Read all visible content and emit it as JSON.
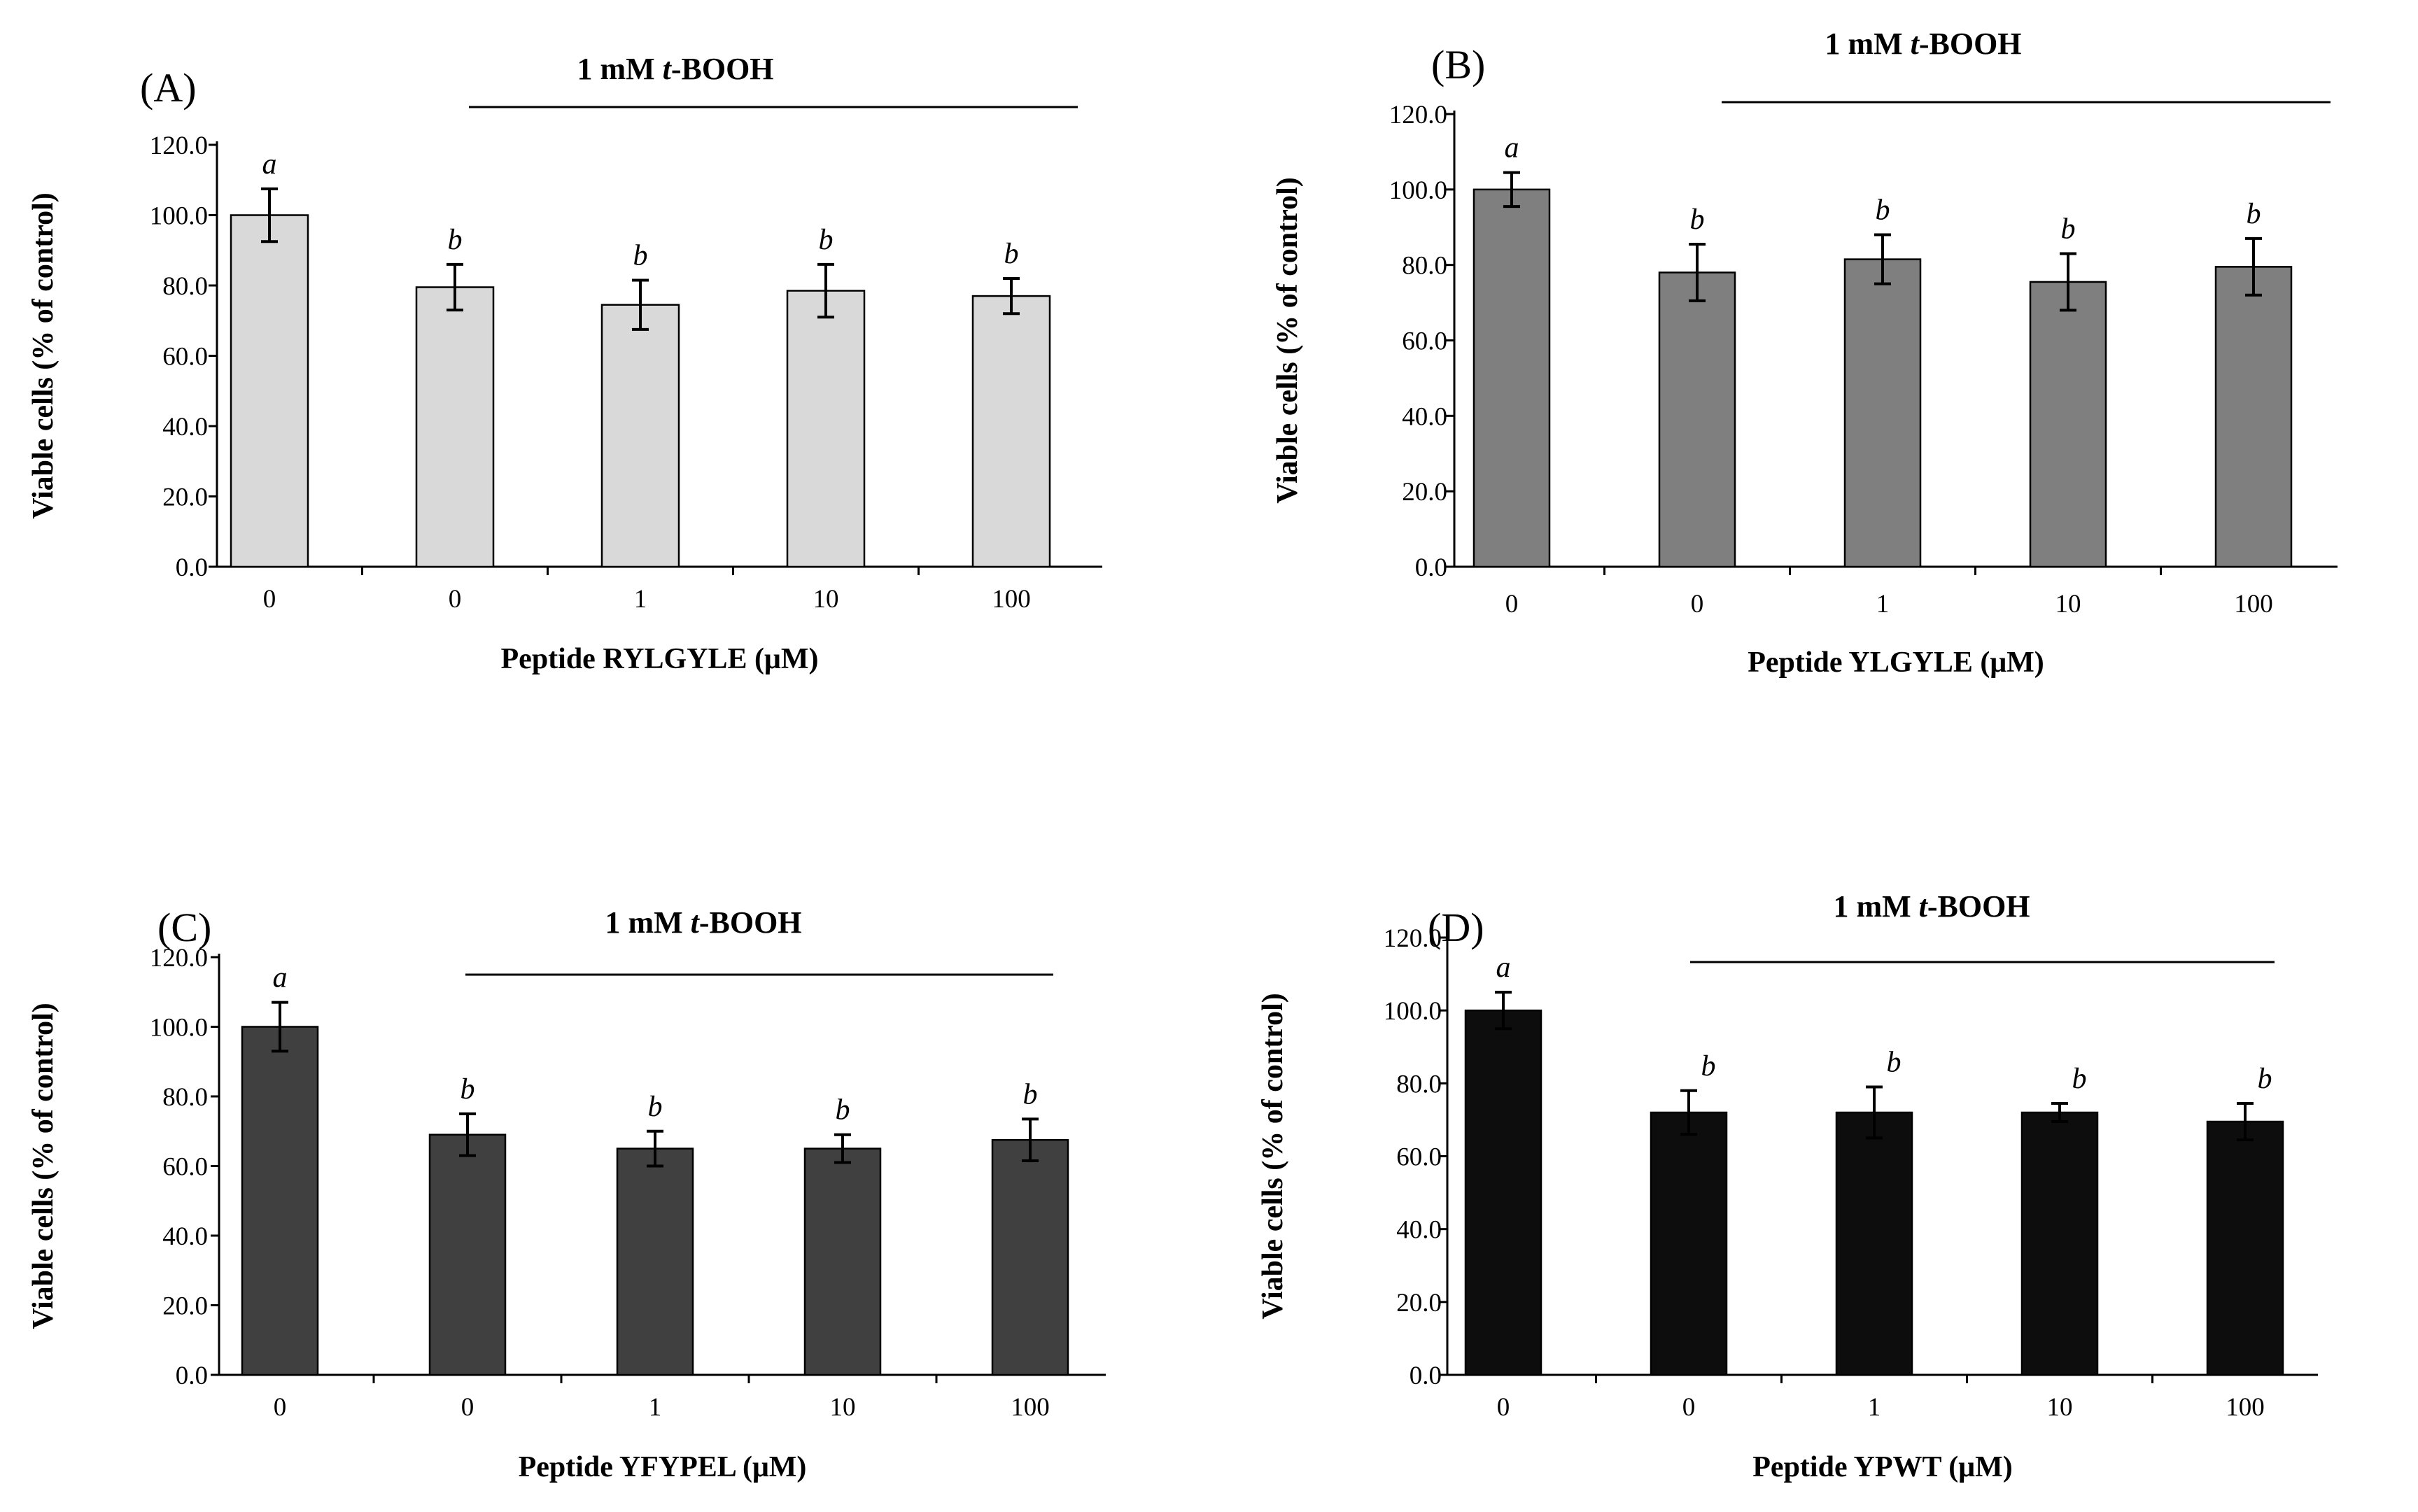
{
  "chart_data": [
    {
      "type": "bar",
      "panel_label": "(A)",
      "treatment_label_prefix": "1 mM ",
      "treatment_label_italic": "t",
      "treatment_label_suffix": "-BOOH",
      "categories": [
        "0",
        "0",
        "1",
        "10",
        "100"
      ],
      "values": [
        100.0,
        79.5,
        74.5,
        78.5,
        77.0
      ],
      "errors": [
        7.5,
        6.5,
        7.0,
        7.5,
        5.0
      ],
      "significance": [
        "a",
        "b",
        "b",
        "b",
        "b"
      ],
      "xlabel": "Peptide RYLGYLE  (μM)",
      "ylabel": "Viable cells (% of control)",
      "ylim": [
        0,
        120
      ],
      "yticks": [
        "0.0",
        "20.0",
        "40.0",
        "60.0",
        "80.0",
        "100.0",
        "120.0"
      ],
      "bar_color": "#d9d9d9"
    },
    {
      "type": "bar",
      "panel_label": "(B)",
      "treatment_label_prefix": "1 mM ",
      "treatment_label_italic": "t",
      "treatment_label_suffix": "-BOOH",
      "categories": [
        "0",
        "0",
        "1",
        "10",
        "100"
      ],
      "values": [
        100.0,
        78.0,
        81.5,
        75.5,
        79.5
      ],
      "errors": [
        4.5,
        7.5,
        6.5,
        7.5,
        7.5
      ],
      "significance": [
        "a",
        "b",
        "b",
        "b",
        "b"
      ],
      "xlabel": "Peptide YLGYLE  (μM)",
      "ylabel": "Viable cells (% of control)",
      "ylim": [
        0,
        120
      ],
      "yticks": [
        "0.0",
        "20.0",
        "40.0",
        "60.0",
        "80.0",
        "100.0",
        "120.0"
      ],
      "bar_color": "#7f7f7f"
    },
    {
      "type": "bar",
      "panel_label": "(C)",
      "treatment_label_prefix": "1 mM ",
      "treatment_label_italic": "t",
      "treatment_label_suffix": "-BOOH",
      "categories": [
        "0",
        "0",
        "1",
        "10",
        "100"
      ],
      "values": [
        100.0,
        69.0,
        65.0,
        65.0,
        67.5
      ],
      "errors": [
        7.0,
        6.0,
        5.0,
        4.0,
        6.0
      ],
      "significance": [
        "a",
        "b",
        "b",
        "b",
        "b"
      ],
      "xlabel": "Peptide YFYPEL  (μM)",
      "ylabel": "Viable cells (% of control)",
      "ylim": [
        0,
        120
      ],
      "yticks": [
        "0.0",
        "20.0",
        "40.0",
        "60.0",
        "80.0",
        "100.0",
        "120.0"
      ],
      "bar_color": "#404040"
    },
    {
      "type": "bar",
      "panel_label": "(D)",
      "treatment_label_prefix": "1 mM ",
      "treatment_label_italic": "t",
      "treatment_label_suffix": "-BOOH",
      "categories": [
        "0",
        "0",
        "1",
        "10",
        "100"
      ],
      "values": [
        100.0,
        72.0,
        72.0,
        72.0,
        69.5
      ],
      "errors": [
        5.0,
        6.0,
        7.0,
        2.5,
        5.0
      ],
      "significance": [
        "a",
        "b",
        "b",
        "b",
        "b"
      ],
      "xlabel": "Peptide YPWT  (μM)",
      "ylabel": "Viable cells (% of control)",
      "ylim": [
        0,
        120
      ],
      "yticks": [
        "0.0",
        "20.0",
        "40.0",
        "60.0",
        "80.0",
        "100.0",
        "120.0"
      ],
      "bar_color": "#0d0d0d"
    }
  ]
}
